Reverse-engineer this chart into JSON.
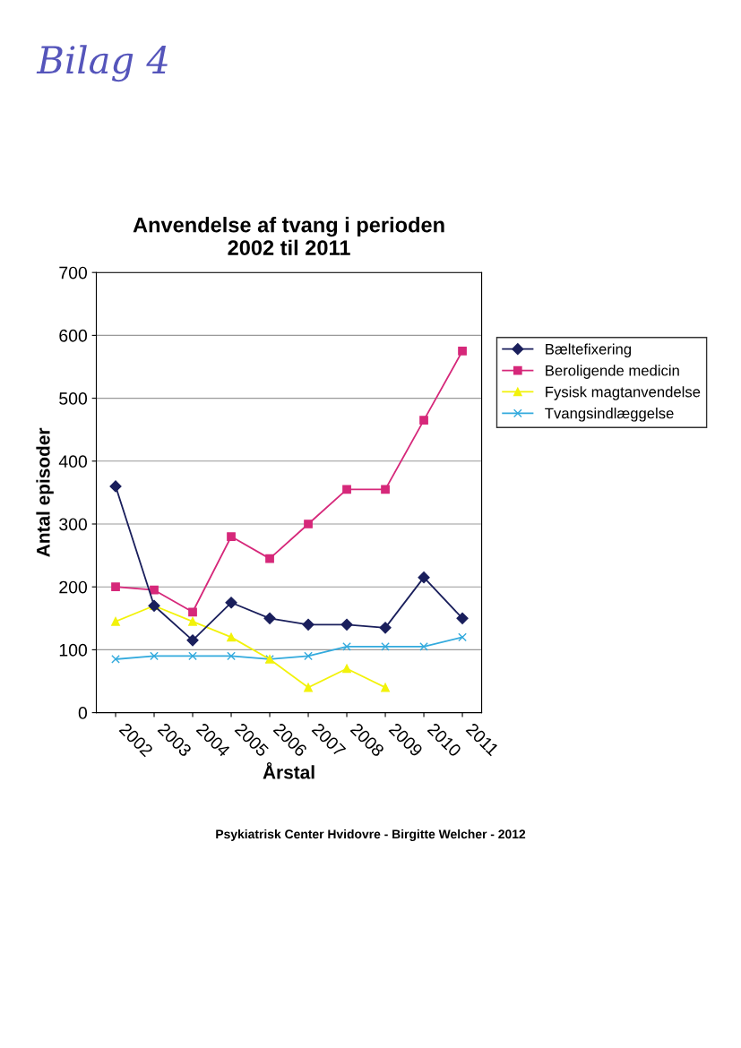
{
  "chart_data": {
    "type": "line",
    "title": "Anvendelse af tvang i perioden\n2002 til 2011",
    "xlabel": "Årstal",
    "ylabel": "Antal episoder",
    "categories": [
      "2002",
      "2003",
      "2004",
      "2005",
      "2006",
      "2007",
      "2008",
      "2009",
      "2010",
      "2011"
    ],
    "series": [
      {
        "name": "Bæltefixering",
        "color": "#1a1f5c",
        "marker": "diamond",
        "values": [
          360,
          170,
          115,
          175,
          150,
          140,
          140,
          135,
          215,
          150
        ]
      },
      {
        "name": "Beroligende medicin",
        "color": "#d6287a",
        "marker": "square",
        "values": [
          200,
          195,
          160,
          280,
          245,
          300,
          355,
          355,
          465,
          575
        ]
      },
      {
        "name": "Fysisk magtanvendelse",
        "color": "#f2f20a",
        "marker": "triangle",
        "values": [
          145,
          170,
          145,
          120,
          85,
          40,
          70,
          40,
          null,
          null
        ]
      },
      {
        "name": "Tvangsindlæggelse",
        "color": "#33aadd",
        "marker": "cross",
        "values": [
          85,
          90,
          90,
          90,
          85,
          90,
          105,
          105,
          105,
          120
        ]
      }
    ],
    "ylim": [
      0,
      700
    ],
    "yticks": [
      0,
      100,
      200,
      300,
      400,
      500,
      600,
      700
    ],
    "grid": "y",
    "legend": "right",
    "line_style": "solid",
    "annotations": [
      "Bilag 4",
      "Psykiatrisk Center Hvidovre - Birgitte Welcher - 2012"
    ]
  }
}
